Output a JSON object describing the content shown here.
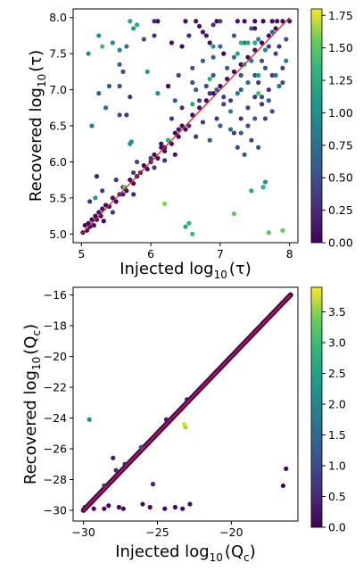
{
  "chart_data": [
    {
      "type": "scatter",
      "xlabel": {
        "pre": "Injected log",
        "sub": "10",
        "post": "(τ)"
      },
      "ylabel": {
        "pre": "Recovered log",
        "sub": "10",
        "post": "(τ)"
      },
      "xlim": [
        4.88,
        8.12
      ],
      "ylim": [
        4.88,
        8.12
      ],
      "xticks": [
        5,
        6,
        7,
        8
      ],
      "yticks": [
        5.0,
        5.5,
        6.0,
        6.5,
        7.0,
        7.5,
        8.0
      ],
      "ytick_labels": [
        "5.0",
        "5.5",
        "6.0",
        "6.5",
        "7.0",
        "7.5",
        "8.0"
      ],
      "identity_line": [
        [
          5,
          5
        ],
        [
          8,
          8
        ]
      ],
      "line_color": "#d62728",
      "colormap": "viridis",
      "colorbar": {
        "min": 0,
        "max": 1.8,
        "ticks": [
          0.0,
          0.25,
          0.5,
          0.75,
          1.0,
          1.25,
          1.5,
          1.75
        ],
        "tick_labels": [
          "0.00",
          "0.25",
          "0.50",
          "0.75",
          "1.00",
          "1.25",
          "1.50",
          "1.75"
        ]
      },
      "points": [
        [
          5.02,
          5.02,
          0.05
        ],
        [
          5.05,
          5.12,
          0.05
        ],
        [
          5.08,
          5.05,
          0.1
        ],
        [
          5.1,
          5.15,
          0.05
        ],
        [
          5.12,
          5.1,
          0.05
        ],
        [
          5.15,
          5.2,
          0.05
        ],
        [
          5.18,
          5.12,
          0.1
        ],
        [
          5.2,
          5.25,
          0.05
        ],
        [
          5.22,
          5.2,
          0.05
        ],
        [
          5.25,
          5.3,
          0.05
        ],
        [
          5.28,
          5.25,
          0.05
        ],
        [
          5.3,
          5.35,
          0.1
        ],
        [
          5.35,
          5.4,
          0.05
        ],
        [
          5.4,
          5.38,
          0.05
        ],
        [
          5.45,
          5.5,
          0.05
        ],
        [
          5.5,
          5.45,
          0.05
        ],
        [
          5.55,
          5.55,
          0.05
        ],
        [
          5.6,
          5.65,
          0.1
        ],
        [
          5.65,
          5.6,
          0.05
        ],
        [
          5.7,
          5.75,
          0.05
        ],
        [
          5.75,
          5.7,
          0.05
        ],
        [
          5.8,
          5.8,
          0.05
        ],
        [
          5.85,
          5.85,
          0.1
        ],
        [
          5.9,
          5.95,
          0.05
        ],
        [
          5.95,
          5.9,
          0.05
        ],
        [
          6.0,
          6.0,
          0.05
        ],
        [
          6.05,
          6.1,
          0.05
        ],
        [
          6.1,
          6.05,
          0.05
        ],
        [
          6.15,
          6.2,
          0.1
        ],
        [
          6.2,
          6.15,
          0.05
        ],
        [
          6.25,
          6.3,
          0.05
        ],
        [
          6.3,
          6.25,
          0.1
        ],
        [
          6.35,
          6.4,
          0.05
        ],
        [
          6.4,
          6.35,
          0.05
        ],
        [
          6.45,
          6.5,
          0.1
        ],
        [
          6.5,
          6.45,
          0.05
        ],
        [
          6.6,
          6.65,
          0.05
        ],
        [
          6.7,
          6.75,
          0.1
        ],
        [
          6.8,
          6.85,
          0.05
        ],
        [
          6.9,
          6.95,
          0.05
        ],
        [
          7.0,
          7.05,
          0.05
        ],
        [
          7.1,
          7.15,
          0.1
        ],
        [
          7.2,
          7.25,
          0.05
        ],
        [
          7.3,
          7.35,
          0.05
        ],
        [
          7.4,
          7.45,
          0.05
        ],
        [
          7.5,
          7.55,
          0.1
        ],
        [
          7.6,
          7.65,
          0.05
        ],
        [
          7.7,
          7.75,
          0.05
        ],
        [
          7.8,
          7.85,
          0.05
        ],
        [
          7.9,
          7.95,
          0.05
        ],
        [
          5.12,
          5.45,
          0.3
        ],
        [
          5.3,
          5.6,
          0.35
        ],
        [
          5.22,
          5.8,
          0.15
        ],
        [
          5.5,
          5.75,
          0.3
        ],
        [
          5.32,
          5.18,
          0.05
        ],
        [
          5.45,
          5.3,
          0.3
        ],
        [
          5.6,
          5.55,
          0.2
        ],
        [
          5.75,
          5.85,
          0.3
        ],
        [
          5.8,
          6.0,
          0.4
        ],
        [
          6.05,
          5.92,
          0.35
        ],
        [
          6.2,
          6.02,
          0.3
        ],
        [
          6.3,
          6.6,
          0.3
        ],
        [
          6.45,
          6.75,
          0.3
        ],
        [
          6.55,
          6.5,
          0.3
        ],
        [
          6.65,
          6.35,
          0.35
        ],
        [
          6.75,
          6.55,
          0.3
        ],
        [
          6.85,
          6.95,
          0.3
        ],
        [
          6.95,
          6.6,
          0.3
        ],
        [
          7.05,
          6.9,
          0.35
        ],
        [
          7.15,
          6.85,
          0.35
        ],
        [
          7.2,
          6.4,
          0.35
        ],
        [
          7.3,
          6.6,
          0.3
        ],
        [
          7.4,
          6.75,
          0.4
        ],
        [
          7.5,
          6.9,
          0.3
        ],
        [
          7.55,
          7.1,
          0.35
        ],
        [
          7.6,
          6.8,
          0.3
        ],
        [
          7.65,
          7.3,
          0.5
        ],
        [
          7.7,
          7.0,
          0.3
        ],
        [
          7.75,
          7.2,
          0.35
        ],
        [
          7.8,
          7.5,
          0.4
        ],
        [
          7.85,
          7.6,
          0.3
        ],
        [
          7.9,
          7.3,
          0.35
        ],
        [
          7.95,
          7.7,
          0.6
        ],
        [
          7.5,
          7.2,
          0.5
        ],
        [
          7.3,
          7.0,
          0.6
        ],
        [
          7.1,
          7.3,
          0.6
        ],
        [
          6.9,
          7.2,
          0.55
        ],
        [
          6.75,
          7.4,
          0.6
        ],
        [
          6.6,
          7.1,
          0.5
        ],
        [
          6.7,
          6.85,
          0.4
        ],
        [
          7.0,
          7.6,
          0.7
        ],
        [
          7.2,
          7.45,
          0.75
        ],
        [
          7.35,
          7.65,
          0.8
        ],
        [
          7.45,
          7.4,
          0.85
        ],
        [
          7.55,
          7.7,
          0.9
        ],
        [
          7.65,
          7.55,
          0.95
        ],
        [
          7.75,
          7.8,
          0.7
        ],
        [
          7.85,
          7.05,
          0.8
        ],
        [
          7.95,
          7.4,
          0.9
        ],
        [
          7.4,
          7.1,
          0.75
        ],
        [
          7.25,
          6.95,
          0.8
        ],
        [
          7.15,
          6.7,
          0.9
        ],
        [
          7.0,
          6.5,
          0.6
        ],
        [
          6.85,
          6.3,
          0.55
        ],
        [
          6.95,
          7.0,
          0.6
        ],
        [
          7.3,
          7.2,
          0.5
        ],
        [
          7.6,
          7.4,
          0.5
        ],
        [
          7.7,
          7.6,
          0.4
        ],
        [
          7.45,
          7.85,
          0.5
        ],
        [
          7.2,
          7.75,
          0.55
        ],
        [
          6.9,
          7.45,
          0.6
        ],
        [
          6.6,
          7.3,
          0.5
        ],
        [
          6.4,
          7.2,
          0.4
        ],
        [
          6.65,
          7.0,
          0.6
        ],
        [
          6.8,
          7.05,
          0.5
        ],
        [
          7.05,
          6.8,
          0.4
        ],
        [
          7.15,
          6.45,
          0.7
        ],
        [
          7.3,
          6.4,
          0.6
        ],
        [
          7.4,
          6.5,
          0.5
        ],
        [
          7.5,
          6.6,
          0.6
        ],
        [
          7.6,
          6.9,
          0.5
        ],
        [
          7.7,
          6.85,
          0.6
        ],
        [
          7.8,
          7.2,
          0.7
        ],
        [
          7.9,
          7.1,
          0.5
        ],
        [
          7.75,
          6.7,
          0.5
        ],
        [
          7.65,
          6.6,
          0.4
        ],
        [
          7.55,
          6.2,
          0.5
        ],
        [
          7.45,
          6.3,
          0.4
        ],
        [
          7.35,
          6.1,
          0.6
        ],
        [
          7.25,
          6.2,
          0.5
        ],
        [
          5.7,
          6.25,
          1.0
        ],
        [
          5.72,
          6.28,
          1.05
        ],
        [
          7.65,
          5.72,
          1.0
        ],
        [
          5.2,
          5.5,
          1.1
        ],
        [
          6.5,
          5.1,
          1.2
        ],
        [
          6.55,
          5.15,
          1.3
        ],
        [
          6.6,
          5.0,
          1.35
        ],
        [
          7.2,
          5.28,
          1.5
        ],
        [
          6.2,
          5.42,
          1.6
        ],
        [
          7.7,
          5.02,
          1.5
        ],
        [
          7.9,
          5.05,
          1.55
        ],
        [
          7.62,
          5.65,
          1.3
        ],
        [
          7.45,
          5.6,
          1.2
        ],
        [
          5.62,
          5.65,
          1.5
        ],
        [
          7.3,
          7.65,
          1.35
        ],
        [
          7.4,
          7.65,
          1.2
        ],
        [
          7.35,
          7.35,
          1.3
        ],
        [
          7.25,
          7.5,
          1.2
        ],
        [
          7.55,
          6.95,
          1.4
        ],
        [
          7.5,
          7.65,
          1.25
        ],
        [
          7.55,
          7.2,
          1.1
        ],
        [
          6.85,
          7.15,
          1.25
        ],
        [
          6.6,
          6.8,
          1.2
        ],
        [
          6.25,
          7.05,
          1.35
        ],
        [
          6.25,
          6.3,
          1.3
        ],
        [
          5.55,
          7.55,
          0.9
        ],
        [
          5.45,
          7.65,
          1.0
        ],
        [
          5.7,
          7.95,
          1.2
        ],
        [
          5.1,
          7.5,
          1.0
        ],
        [
          5.4,
          7.05,
          0.6
        ],
        [
          5.55,
          7.05,
          0.5
        ],
        [
          5.25,
          6.95,
          0.6
        ],
        [
          5.65,
          7.6,
          0.8
        ],
        [
          5.15,
          6.5,
          0.9
        ],
        [
          5.3,
          7.6,
          1.4
        ],
        [
          5.55,
          7.35,
          0.6
        ],
        [
          5.55,
          6.65,
          0.5
        ],
        [
          5.25,
          7.75,
          1.0
        ],
        [
          5.95,
          7.25,
          1.1
        ],
        [
          5.6,
          7.25,
          0.5
        ],
        [
          5.35,
          6.75,
          0.7
        ],
        [
          5.75,
          7.85,
          1.1
        ],
        [
          5.8,
          7.9,
          1.2
        ],
        [
          6.1,
          6.95,
          1.0
        ],
        [
          5.9,
          7.7,
          0.5
        ],
        [
          6.35,
          6.85,
          0.6
        ],
        [
          6.9,
          7.6,
          1.1
        ],
        [
          6.05,
          7.75,
          0.3
        ],
        [
          6.9,
          7.9,
          0.25
        ],
        [
          6.05,
          7.95,
          0.25
        ],
        [
          7.0,
          7.95,
          0.5
        ],
        [
          6.1,
          7.95,
          0.05
        ],
        [
          6.5,
          7.95,
          0.05
        ],
        [
          6.65,
          7.95,
          0.1
        ],
        [
          6.95,
          7.95,
          0.05
        ],
        [
          6.7,
          7.88,
          0.1
        ],
        [
          6.75,
          7.8,
          0.05
        ],
        [
          6.8,
          7.75,
          0.1
        ],
        [
          6.85,
          7.65,
          0.05
        ],
        [
          7.05,
          7.5,
          0.05
        ],
        [
          6.2,
          6.2,
          0.1
        ],
        [
          6.15,
          6.25,
          0.05
        ],
        [
          6.4,
          6.45,
          0.1
        ],
        [
          6.0,
          6.05,
          0.3
        ],
        [
          5.75,
          5.55,
          0.2
        ],
        [
          6.35,
          6.1,
          0.1
        ],
        [
          6.25,
          7.05,
          0.05
        ],
        [
          7.35,
          7.95,
          0.05
        ],
        [
          7.5,
          7.95,
          0.05
        ],
        [
          7.62,
          7.95,
          0.05
        ],
        [
          7.82,
          7.95,
          0.05
        ],
        [
          8.0,
          7.95,
          0.1
        ],
        [
          7.5,
          7.85,
          0.1
        ],
        [
          7.75,
          7.95,
          0.05
        ],
        [
          7.25,
          7.95,
          0.1
        ],
        [
          6.55,
          7.75,
          0.2
        ],
        [
          6.45,
          7.6,
          0.05
        ],
        [
          6.3,
          7.65,
          0.1
        ],
        [
          5.7,
          6.9,
          0.3
        ],
        [
          5.65,
          6.65,
          0.3
        ]
      ]
    },
    {
      "type": "scatter",
      "xlabel": {
        "pre": "Injected log",
        "sub": "10",
        "post": "(Q",
        "sub2": "c",
        "post2": ")"
      },
      "ylabel": {
        "pre": "Recovered log",
        "sub": "10",
        "post": "(Q",
        "sub2": "c",
        "post2": ")"
      },
      "xlim": [
        -30.7,
        -15.5
      ],
      "ylim": [
        -30.7,
        -15.5
      ],
      "xticks": [
        -30,
        -25,
        -20
      ],
      "xtick_labels": [
        "−30",
        "−25",
        "−20"
      ],
      "yticks": [
        -30,
        -28,
        -26,
        -24,
        -22,
        -20,
        -18,
        -16
      ],
      "ytick_labels": [
        "−30",
        "−28",
        "−26",
        "−24",
        "−22",
        "−20",
        "−18",
        "−16"
      ],
      "identity_line": [
        [
          -30,
          -30
        ],
        [
          -16,
          -16
        ]
      ],
      "line_color": "#d62728",
      "colormap": "viridis",
      "colorbar": {
        "min": 0,
        "max": 3.9,
        "ticks": [
          0.0,
          0.5,
          1.0,
          1.5,
          2.0,
          2.5,
          3.0,
          3.5
        ],
        "tick_labels": [
          "0.0",
          "0.5",
          "1.0",
          "1.5",
          "2.0",
          "2.5",
          "3.0",
          "3.5"
        ]
      },
      "diagonal_points": {
        "from": -30,
        "to": -16,
        "count": 140,
        "value": 0.05
      },
      "points": [
        [
          -29.6,
          -24.1,
          2.2
        ],
        [
          -23.2,
          -24.4,
          3.8
        ],
        [
          -23.1,
          -24.6,
          3.6
        ],
        [
          -27.8,
          -27.4,
          0.5
        ],
        [
          -28.0,
          -26.6,
          0.3
        ],
        [
          -25.3,
          -28.3,
          0.4
        ],
        [
          -29.9,
          -29.8,
          0.1
        ],
        [
          -29.3,
          -29.9,
          0.1
        ],
        [
          -28.6,
          -29.9,
          0.1
        ],
        [
          -28.3,
          -29.7,
          0.1
        ],
        [
          -27.6,
          -29.8,
          0.1
        ],
        [
          -27.3,
          -29.9,
          0.1
        ],
        [
          -26.0,
          -29.6,
          0.1
        ],
        [
          -25.5,
          -29.8,
          0.1
        ],
        [
          -24.5,
          -29.9,
          0.1
        ],
        [
          -23.8,
          -29.8,
          0.1
        ],
        [
          -23.3,
          -29.9,
          0.1
        ],
        [
          -22.8,
          -29.6,
          0.1
        ],
        [
          -16.3,
          -27.3,
          0.1
        ],
        [
          -16.5,
          -28.4,
          0.1
        ],
        [
          -26.1,
          -25.9,
          1.0
        ],
        [
          -28.6,
          -28.4,
          0.5
        ],
        [
          -27.2,
          -27.0,
          0.4
        ],
        [
          -24.4,
          -24.1,
          0.3
        ],
        [
          -23.0,
          -22.8,
          0.2
        ]
      ]
    }
  ]
}
